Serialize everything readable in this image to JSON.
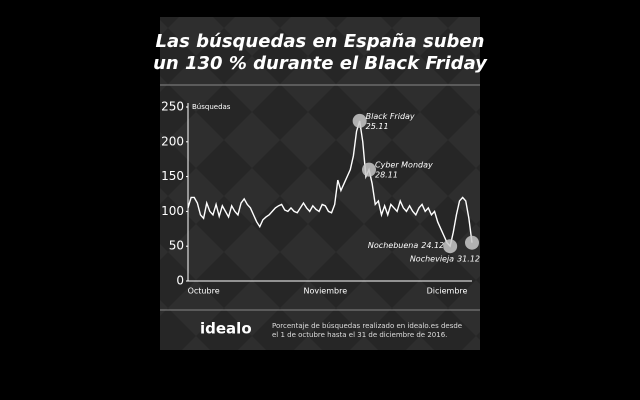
{
  "chart_data": {
    "type": "line",
    "title": [
      "Las búsquedas en España suben",
      "un 130 % durante el Black Friday"
    ],
    "y_label": "Búsquedas",
    "categories": [
      null,
      null,
      null,
      null,
      null,
      "Octubre",
      null,
      null,
      null,
      null,
      null,
      null,
      null,
      null,
      null,
      null,
      null,
      null,
      null,
      null,
      null,
      null,
      null,
      null,
      null,
      null,
      null,
      null,
      null,
      null,
      null,
      null,
      null,
      null,
      null,
      null,
      null,
      null,
      null,
      null,
      null,
      null,
      null,
      null,
      "Noviembre",
      null,
      null,
      null,
      null,
      null,
      null,
      null,
      null,
      null,
      null,
      null,
      null,
      null,
      null,
      null,
      null,
      null,
      null,
      null,
      null,
      null,
      null,
      null,
      null,
      null,
      null,
      null,
      null,
      null,
      null,
      null,
      null,
      null,
      null,
      null,
      null,
      null,
      null,
      "Diciembre",
      null,
      null,
      null,
      null,
      null,
      null,
      null,
      null
    ],
    "values": [
      105,
      120,
      120,
      112,
      95,
      90,
      112,
      100,
      95,
      110,
      93,
      108,
      100,
      92,
      108,
      100,
      95,
      112,
      118,
      110,
      105,
      95,
      85,
      78,
      88,
      92,
      95,
      100,
      105,
      108,
      110,
      102,
      100,
      105,
      100,
      98,
      105,
      112,
      105,
      100,
      108,
      103,
      100,
      110,
      108,
      100,
      98,
      110,
      145,
      130,
      140,
      150,
      160,
      180,
      215,
      230,
      200,
      150,
      160,
      140,
      110,
      115,
      95,
      108,
      95,
      110,
      105,
      100,
      115,
      105,
      100,
      108,
      100,
      95,
      105,
      110,
      100,
      105,
      95,
      100,
      85,
      75,
      65,
      55,
      50,
      70,
      95,
      115,
      120,
      115,
      90,
      55
    ],
    "color": "#ffffff",
    "ylim": [
      0,
      250
    ],
    "yticks": [
      0,
      50,
      100,
      150,
      200,
      250
    ],
    "annotations": [
      {
        "label": "Black Friday",
        "date": "25.11"
      },
      {
        "label": "Cyber Monday",
        "date": "28.11"
      },
      {
        "label": "Nochebuena",
        "date": "24.12"
      },
      {
        "label": "Nochevieja",
        "date": "31.12"
      }
    ]
  },
  "footer": {
    "logo": "idealo",
    "note": [
      "Porcentaje de búsquedas realizado en idealo.es desde",
      "el 1 de octubre hasta el 31 de diciembre de 2016."
    ]
  }
}
